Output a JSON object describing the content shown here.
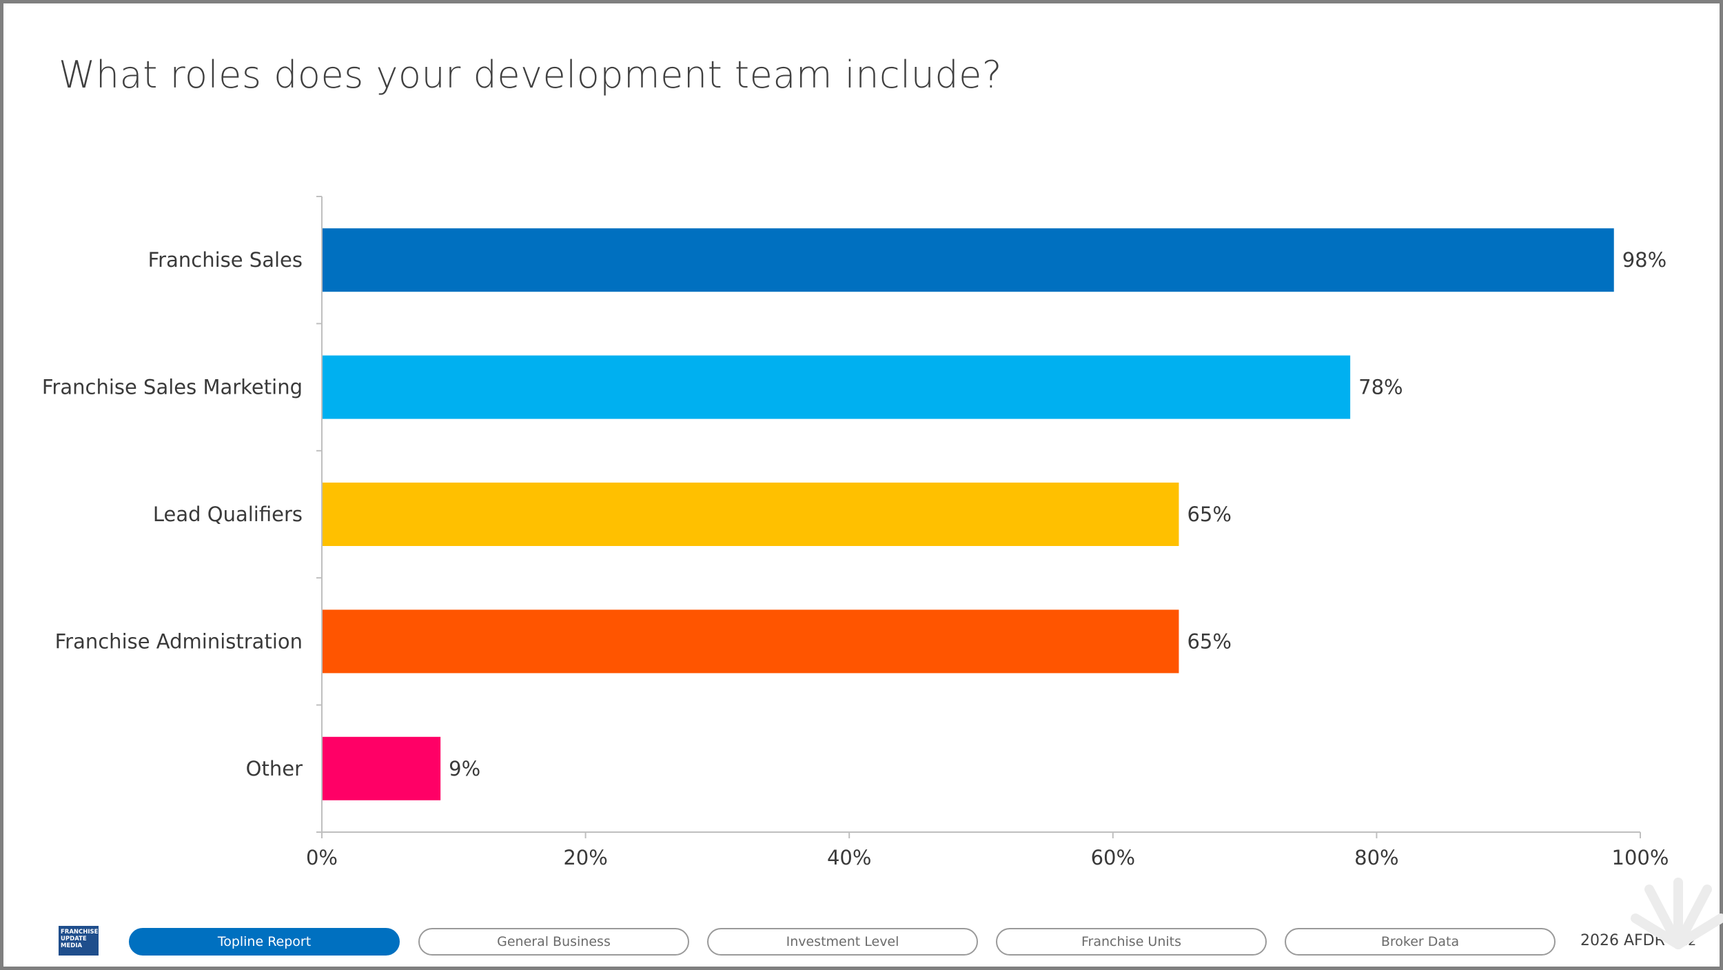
{
  "slide": {
    "title": "What roles does your development team include?"
  },
  "chart_data": {
    "type": "bar",
    "orientation": "horizontal",
    "title": "What roles does your development team include?",
    "categories": [
      "Franchise Sales",
      "Franchise Sales Marketing",
      "Lead Qualifiers",
      "Franchise Administration",
      "Other"
    ],
    "values": [
      98,
      78,
      65,
      65,
      9
    ],
    "value_labels": [
      "98%",
      "78%",
      "65%",
      "65%",
      "9%"
    ],
    "colors": [
      "#0070c0",
      "#00b0f0",
      "#ffc000",
      "#ff5500",
      "#ff0066"
    ],
    "xlim": [
      0,
      100
    ],
    "x_ticks": [
      "0%",
      "20%",
      "40%",
      "60%",
      "80%",
      "100%"
    ],
    "grid": false,
    "legend": "none"
  },
  "footer": {
    "logo_lines": [
      "FRANCHISE",
      "UPDATE",
      "MEDIA"
    ],
    "nav": [
      {
        "label": "Topline Report",
        "active": true
      },
      {
        "label": "General Business",
        "active": false
      },
      {
        "label": "Investment Level",
        "active": false
      },
      {
        "label": "Franchise Units",
        "active": false
      },
      {
        "label": "Broker Data",
        "active": false
      }
    ],
    "report": "2026 AFDR",
    "page": "12"
  }
}
